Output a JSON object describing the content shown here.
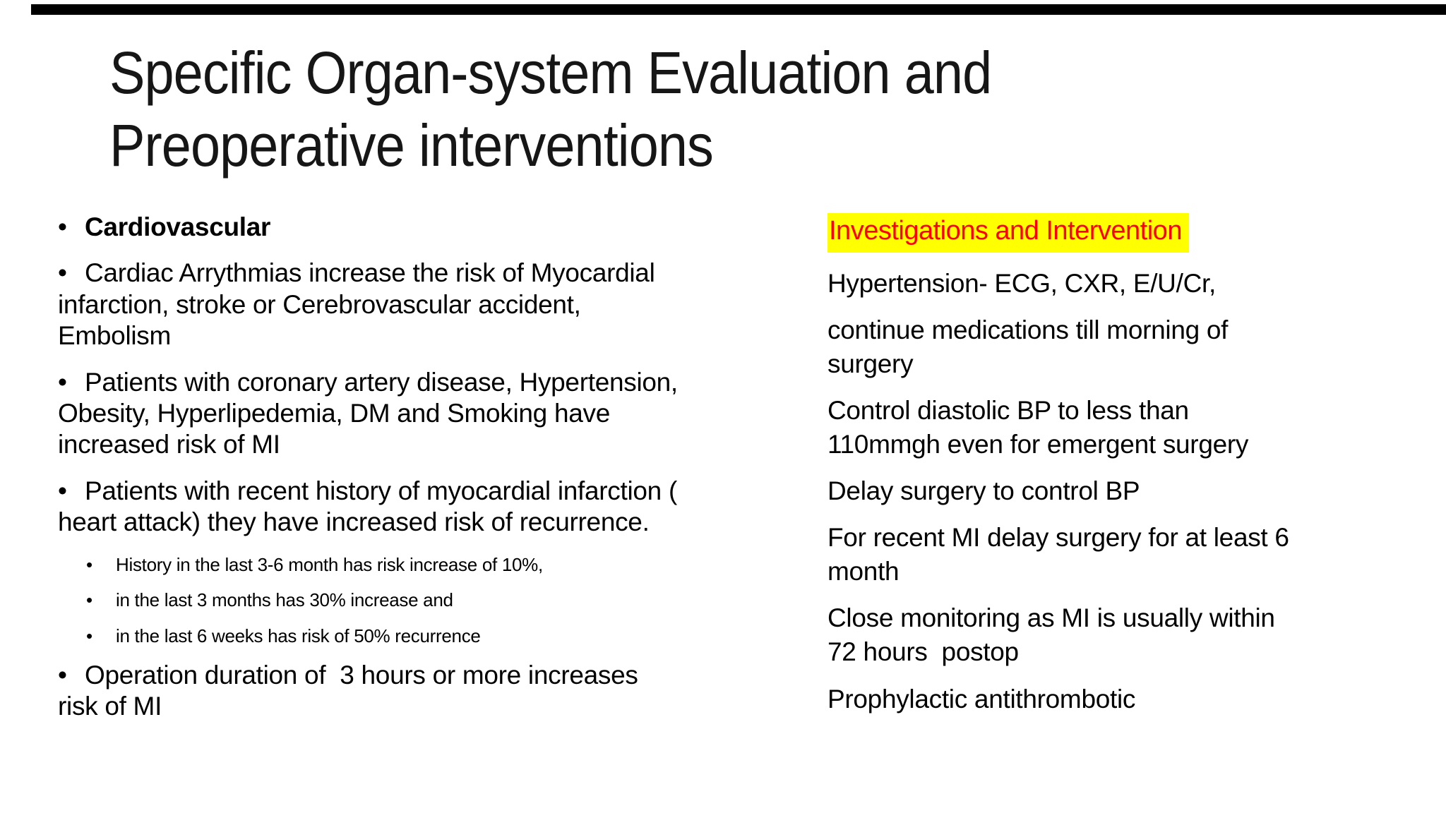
{
  "slide_title_lines": [
    "Specific Organ-system Evaluation and",
    "Preoperative interventions"
  ],
  "bullets": {
    "main": "•",
    "sub": "•"
  },
  "left_column": {
    "items": [
      {
        "lines": [
          "Cardiovascular"
        ]
      },
      {
        "lines": [
          "Cardiac Arrythmias increase the risk of Myocardial",
          "infarction, stroke or Cerebrovascular accident,",
          "Embolism"
        ]
      },
      {
        "lines": [
          "Patients with coronary artery disease, Hypertension,",
          "Obesity, Hyperlipedemia, DM and Smoking have",
          "increased risk of MI"
        ]
      },
      {
        "lines": [
          "Patients with recent history of myocardial infarction (",
          "heart attack) they have increased risk of recurrence."
        ]
      },
      {
        "lines": [
          "History in the last 3-6 month has risk increase of 10%,"
        ]
      },
      {
        "lines": [
          "in the last 3 months has 30% increase and"
        ]
      },
      {
        "lines": [
          "in the last 6 weeks has risk of 50% recurrence"
        ]
      },
      {
        "lines": [
          "Operation duration of  3 hours or more increases",
          "risk of MI"
        ]
      }
    ]
  },
  "right_column": {
    "heading": {
      "text": "Investigations and Intervention",
      "text_color": "#ff0000",
      "highlight_color": "#ffff00"
    },
    "paragraphs": [
      [
        "Hypertension- ECG, CXR, E/U/Cr,"
      ],
      [
        "continue medications till morning of",
        "surgery"
      ],
      [
        "Control diastolic BP to less than",
        "110mmgh even for emergent surgery"
      ],
      [
        "Delay surgery to control BP"
      ],
      [
        "For recent MI delay surgery for at least 6",
        "month"
      ],
      [
        "Close monitoring as MI is usually within",
        "72 hours  postop"
      ],
      [
        "Prophylactic antithrombotic"
      ]
    ]
  },
  "decor": {
    "top_bar_color": "#000000"
  }
}
